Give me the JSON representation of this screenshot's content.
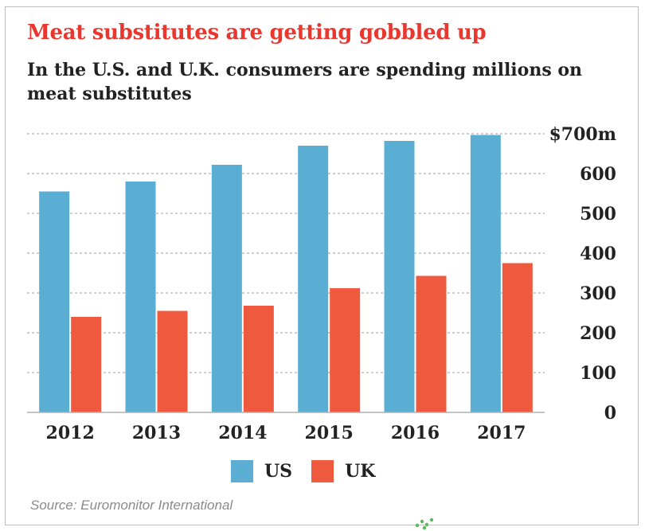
{
  "chart_data": {
    "type": "bar",
    "title": "Meat substitutes are getting gobbled up",
    "subtitle": "In the U.S. and U.K. consumers are spending millions on meat substitutes",
    "categories": [
      "2012",
      "2013",
      "2014",
      "2015",
      "2016",
      "2017"
    ],
    "series": [
      {
        "name": "US",
        "color": "#5aaed4",
        "values": [
          555,
          580,
          622,
          670,
          682,
          697
        ]
      },
      {
        "name": "UK",
        "color": "#ef5a3f",
        "values": [
          240,
          255,
          268,
          312,
          343,
          375
        ]
      }
    ],
    "y_ticks": [
      "0",
      "100",
      "200",
      "300",
      "400",
      "500",
      "600",
      "$700m"
    ],
    "ylim": [
      0,
      700
    ],
    "grid": true,
    "legend_placement": "bottom",
    "source": "Source: Euromonitor International"
  }
}
